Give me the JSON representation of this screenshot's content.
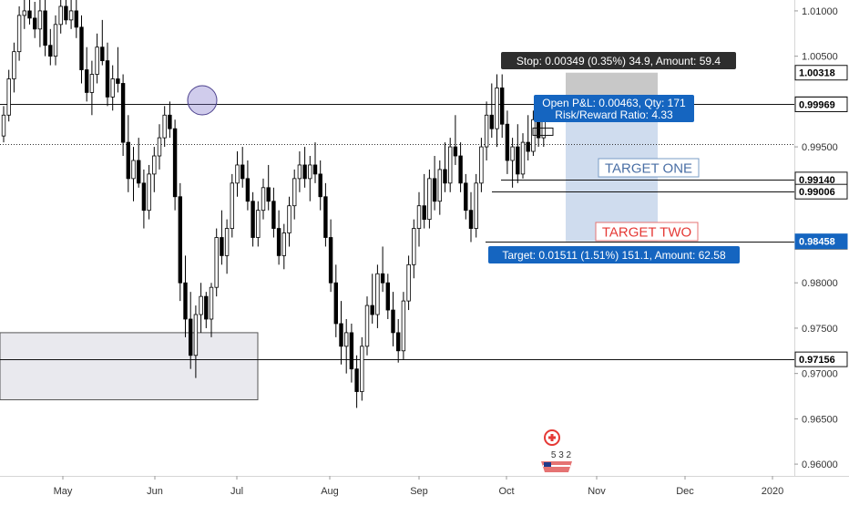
{
  "chart_data": {
    "type": "candlestick",
    "title": "",
    "xlabel": "",
    "ylabel": "",
    "ylim": [
      0.9587,
      1.0112
    ],
    "x_tick_labels": [
      "May",
      "Jun",
      "Jul",
      "Aug",
      "Sep",
      "Oct",
      "Nov",
      "Dec",
      "2020"
    ],
    "y_tick_labels": [
      "1.01000",
      "1.00500",
      "0.99500",
      "0.98000",
      "0.97500",
      "0.97000",
      "0.96500",
      "0.96000"
    ],
    "y_tick_values": [
      1.01,
      1.005,
      0.995,
      0.98,
      0.975,
      0.97,
      0.965,
      0.96
    ],
    "grid": false,
    "horizontal_levels": [
      {
        "value": 0.9997,
        "label": "0.99970",
        "tag_color": "#ffffff",
        "text_color": "#000000"
      },
      {
        "value": 0.9914,
        "label": "0.99140",
        "tag_color": "#ffffff",
        "text_color": "#000000"
      },
      {
        "value": 0.99006,
        "label": "0.99006",
        "tag_color": "#ffffff",
        "text_color": "#000000"
      },
      {
        "value": 0.98454,
        "label": "0.98454",
        "tag_color": "#ffffff",
        "text_color": "#000000"
      },
      {
        "value": 0.97156,
        "label": "0.97156",
        "tag_color": "#ffffff",
        "text_color": "#000000"
      }
    ],
    "price_tags": [
      {
        "value": 1.00318,
        "label": "1.00318",
        "bg": "#ffffff",
        "fg": "#000000"
      },
      {
        "value": 0.99969,
        "label": "0.99969",
        "bg": "#ffffff",
        "fg": "#000000"
      },
      {
        "value": 0.98458,
        "label": "0.98458",
        "bg": "#1565c0",
        "fg": "#ffffff"
      }
    ],
    "current_price_line": 0.9953,
    "trade": {
      "entry": 0.99969,
      "stop": 1.00318,
      "target": 0.98458,
      "stop_label": "Stop: 0.00349 (0.35%) 34.9, Amount: 59.4",
      "open_pnl_label": "Open P&L: 0.00463, Qty: 171",
      "risk_reward_label": "Risk/Reward Ratio: 4.33",
      "target_label": "Target: 0.01511 (1.51%) 151.1, Amount: 62.58",
      "stop_zone_color": "#c8c8c8",
      "target_zone_color": "#cfdcee"
    },
    "annotations": {
      "target_one": {
        "text": "TARGET ONE",
        "color": "#4a6fa5"
      },
      "target_two": {
        "text": "TARGET TWO",
        "color": "#e53935"
      }
    },
    "support_zone": {
      "top": 0.9745,
      "bottom": 0.9671
    },
    "earnings_badge": {
      "text": "5 3 2"
    },
    "candles": [
      {
        "o": 0.9962,
        "h": 0.9995,
        "l": 0.9955,
        "c": 0.9985
      },
      {
        "o": 0.9985,
        "h": 1.0035,
        "l": 0.9978,
        "c": 1.0025
      },
      {
        "o": 1.0025,
        "h": 1.0065,
        "l": 1.001,
        "c": 1.0055
      },
      {
        "o": 1.0055,
        "h": 1.0105,
        "l": 1.0045,
        "c": 1.0095
      },
      {
        "o": 1.0095,
        "h": 1.0112,
        "l": 1.008,
        "c": 1.01
      },
      {
        "o": 1.01,
        "h": 1.0112,
        "l": 1.0085,
        "c": 1.0092
      },
      {
        "o": 1.0092,
        "h": 1.011,
        "l": 1.007,
        "c": 1.008
      },
      {
        "o": 1.008,
        "h": 1.0112,
        "l": 1.006,
        "c": 1.01
      },
      {
        "o": 1.01,
        "h": 1.0112,
        "l": 1.005,
        "c": 1.0062
      },
      {
        "o": 1.0062,
        "h": 1.008,
        "l": 1.004,
        "c": 1.005
      },
      {
        "o": 1.005,
        "h": 1.0095,
        "l": 1.004,
        "c": 1.0085
      },
      {
        "o": 1.0085,
        "h": 1.0112,
        "l": 1.0075,
        "c": 1.0105
      },
      {
        "o": 1.0105,
        "h": 1.0112,
        "l": 1.0085,
        "c": 1.009
      },
      {
        "o": 1.009,
        "h": 1.0112,
        "l": 1.008,
        "c": 1.01
      },
      {
        "o": 1.01,
        "h": 1.0112,
        "l": 1.007,
        "c": 1.0082
      },
      {
        "o": 1.0082,
        "h": 1.0095,
        "l": 1.002,
        "c": 1.0035
      },
      {
        "o": 1.0035,
        "h": 1.006,
        "l": 1.0,
        "c": 1.001
      },
      {
        "o": 1.001,
        "h": 1.0045,
        "l": 0.9985,
        "c": 1.003
      },
      {
        "o": 1.003,
        "h": 1.0075,
        "l": 1.002,
        "c": 1.006
      },
      {
        "o": 1.006,
        "h": 1.009,
        "l": 1.004,
        "c": 1.0045
      },
      {
        "o": 1.0045,
        "h": 1.0065,
        "l": 0.9995,
        "c": 1.0005
      },
      {
        "o": 1.0005,
        "h": 1.004,
        "l": 0.999,
        "c": 1.0025
      },
      {
        "o": 1.0025,
        "h": 1.006,
        "l": 1.001,
        "c": 1.002
      },
      {
        "o": 1.002,
        "h": 1.003,
        "l": 0.994,
        "c": 0.9955
      },
      {
        "o": 0.9955,
        "h": 0.9985,
        "l": 0.99,
        "c": 0.9915
      },
      {
        "o": 0.9915,
        "h": 0.995,
        "l": 0.989,
        "c": 0.9935
      },
      {
        "o": 0.9935,
        "h": 0.996,
        "l": 0.9905,
        "c": 0.991
      },
      {
        "o": 0.991,
        "h": 0.9925,
        "l": 0.986,
        "c": 0.988
      },
      {
        "o": 0.988,
        "h": 0.993,
        "l": 0.987,
        "c": 0.992
      },
      {
        "o": 0.992,
        "h": 0.995,
        "l": 0.99,
        "c": 0.994
      },
      {
        "o": 0.994,
        "h": 0.9975,
        "l": 0.9925,
        "c": 0.996
      },
      {
        "o": 0.996,
        "h": 0.9995,
        "l": 0.995,
        "c": 0.9985
      },
      {
        "o": 0.9985,
        "h": 1.0,
        "l": 0.996,
        "c": 0.997
      },
      {
        "o": 0.997,
        "h": 0.998,
        "l": 0.988,
        "c": 0.9895
      },
      {
        "o": 0.9895,
        "h": 0.991,
        "l": 0.978,
        "c": 0.98
      },
      {
        "o": 0.98,
        "h": 0.983,
        "l": 0.974,
        "c": 0.976
      },
      {
        "o": 0.976,
        "h": 0.979,
        "l": 0.9705,
        "c": 0.972
      },
      {
        "o": 0.972,
        "h": 0.9775,
        "l": 0.9695,
        "c": 0.9765
      },
      {
        "o": 0.9765,
        "h": 0.98,
        "l": 0.9745,
        "c": 0.9785
      },
      {
        "o": 0.9785,
        "h": 0.979,
        "l": 0.975,
        "c": 0.976
      },
      {
        "o": 0.976,
        "h": 0.98,
        "l": 0.974,
        "c": 0.9795
      },
      {
        "o": 0.9795,
        "h": 0.986,
        "l": 0.9785,
        "c": 0.985
      },
      {
        "o": 0.985,
        "h": 0.988,
        "l": 0.982,
        "c": 0.983
      },
      {
        "o": 0.983,
        "h": 0.987,
        "l": 0.981,
        "c": 0.986
      },
      {
        "o": 0.986,
        "h": 0.992,
        "l": 0.985,
        "c": 0.991
      },
      {
        "o": 0.991,
        "h": 0.9945,
        "l": 0.9895,
        "c": 0.993
      },
      {
        "o": 0.993,
        "h": 0.995,
        "l": 0.9905,
        "c": 0.9915
      },
      {
        "o": 0.9915,
        "h": 0.9935,
        "l": 0.988,
        "c": 0.989
      },
      {
        "o": 0.989,
        "h": 0.99,
        "l": 0.984,
        "c": 0.985
      },
      {
        "o": 0.985,
        "h": 0.989,
        "l": 0.984,
        "c": 0.988
      },
      {
        "o": 0.988,
        "h": 0.9915,
        "l": 0.987,
        "c": 0.9905
      },
      {
        "o": 0.9905,
        "h": 0.993,
        "l": 0.988,
        "c": 0.989
      },
      {
        "o": 0.989,
        "h": 0.9905,
        "l": 0.985,
        "c": 0.986
      },
      {
        "o": 0.986,
        "h": 0.988,
        "l": 0.982,
        "c": 0.983
      },
      {
        "o": 0.983,
        "h": 0.9865,
        "l": 0.9815,
        "c": 0.9855
      },
      {
        "o": 0.9855,
        "h": 0.9895,
        "l": 0.984,
        "c": 0.9885
      },
      {
        "o": 0.9885,
        "h": 0.9925,
        "l": 0.987,
        "c": 0.9915
      },
      {
        "o": 0.9915,
        "h": 0.9945,
        "l": 0.99,
        "c": 0.993
      },
      {
        "o": 0.993,
        "h": 0.995,
        "l": 0.9905,
        "c": 0.9915
      },
      {
        "o": 0.9915,
        "h": 0.994,
        "l": 0.989,
        "c": 0.993
      },
      {
        "o": 0.993,
        "h": 0.9955,
        "l": 0.991,
        "c": 0.992
      },
      {
        "o": 0.992,
        "h": 0.9935,
        "l": 0.988,
        "c": 0.9895
      },
      {
        "o": 0.9895,
        "h": 0.991,
        "l": 0.984,
        "c": 0.985
      },
      {
        "o": 0.985,
        "h": 0.987,
        "l": 0.979,
        "c": 0.98
      },
      {
        "o": 0.98,
        "h": 0.982,
        "l": 0.974,
        "c": 0.9755
      },
      {
        "o": 0.9755,
        "h": 0.978,
        "l": 0.971,
        "c": 0.973
      },
      {
        "o": 0.973,
        "h": 0.976,
        "l": 0.97,
        "c": 0.9745
      },
      {
        "o": 0.9745,
        "h": 0.9755,
        "l": 0.969,
        "c": 0.9705
      },
      {
        "o": 0.9705,
        "h": 0.972,
        "l": 0.9662,
        "c": 0.968
      },
      {
        "o": 0.968,
        "h": 0.974,
        "l": 0.967,
        "c": 0.973
      },
      {
        "o": 0.973,
        "h": 0.9785,
        "l": 0.972,
        "c": 0.9775
      },
      {
        "o": 0.9775,
        "h": 0.981,
        "l": 0.9755,
        "c": 0.9765
      },
      {
        "o": 0.9765,
        "h": 0.982,
        "l": 0.975,
        "c": 0.981
      },
      {
        "o": 0.981,
        "h": 0.984,
        "l": 0.979,
        "c": 0.98
      },
      {
        "o": 0.98,
        "h": 0.981,
        "l": 0.976,
        "c": 0.977
      },
      {
        "o": 0.977,
        "h": 0.979,
        "l": 0.973,
        "c": 0.9745
      },
      {
        "o": 0.9745,
        "h": 0.976,
        "l": 0.9712,
        "c": 0.9725
      },
      {
        "o": 0.9725,
        "h": 0.979,
        "l": 0.9715,
        "c": 0.978
      },
      {
        "o": 0.978,
        "h": 0.983,
        "l": 0.977,
        "c": 0.982
      },
      {
        "o": 0.982,
        "h": 0.987,
        "l": 0.9805,
        "c": 0.986
      },
      {
        "o": 0.986,
        "h": 0.99,
        "l": 0.984,
        "c": 0.9885
      },
      {
        "o": 0.9885,
        "h": 0.992,
        "l": 0.986,
        "c": 0.987
      },
      {
        "o": 0.987,
        "h": 0.9925,
        "l": 0.986,
        "c": 0.9915
      },
      {
        "o": 0.9915,
        "h": 0.994,
        "l": 0.988,
        "c": 0.989
      },
      {
        "o": 0.989,
        "h": 0.9935,
        "l": 0.9875,
        "c": 0.9925
      },
      {
        "o": 0.9925,
        "h": 0.9955,
        "l": 0.99,
        "c": 0.991
      },
      {
        "o": 0.991,
        "h": 0.996,
        "l": 0.99,
        "c": 0.995
      },
      {
        "o": 0.995,
        "h": 0.9985,
        "l": 0.993,
        "c": 0.994
      },
      {
        "o": 0.994,
        "h": 0.9955,
        "l": 0.99,
        "c": 0.991
      },
      {
        "o": 0.991,
        "h": 0.992,
        "l": 0.987,
        "c": 0.988
      },
      {
        "o": 0.988,
        "h": 0.99,
        "l": 0.9845,
        "c": 0.986
      },
      {
        "o": 0.986,
        "h": 0.992,
        "l": 0.985,
        "c": 0.991
      },
      {
        "o": 0.991,
        "h": 0.996,
        "l": 0.99,
        "c": 0.995
      },
      {
        "o": 0.995,
        "h": 1.0,
        "l": 0.9935,
        "c": 0.9985
      },
      {
        "o": 0.9985,
        "h": 1.002,
        "l": 0.996,
        "c": 0.997
      },
      {
        "o": 0.997,
        "h": 1.003,
        "l": 0.995,
        "c": 1.0015
      },
      {
        "o": 1.0015,
        "h": 1.003,
        "l": 0.996,
        "c": 0.9975
      },
      {
        "o": 0.9975,
        "h": 0.999,
        "l": 0.992,
        "c": 0.9935
      },
      {
        "o": 0.9935,
        "h": 0.996,
        "l": 0.9905,
        "c": 0.995
      },
      {
        "o": 0.995,
        "h": 0.9975,
        "l": 0.991,
        "c": 0.992
      },
      {
        "o": 0.992,
        "h": 0.9965,
        "l": 0.9915,
        "c": 0.9955
      },
      {
        "o": 0.9955,
        "h": 0.9985,
        "l": 0.9935,
        "c": 0.9945
      },
      {
        "o": 0.9945,
        "h": 0.999,
        "l": 0.994,
        "c": 0.998
      },
      {
        "o": 0.998,
        "h": 0.999,
        "l": 0.995,
        "c": 0.996
      },
      {
        "o": 0.996,
        "h": 0.9995,
        "l": 0.995,
        "c": 0.9985
      }
    ]
  }
}
